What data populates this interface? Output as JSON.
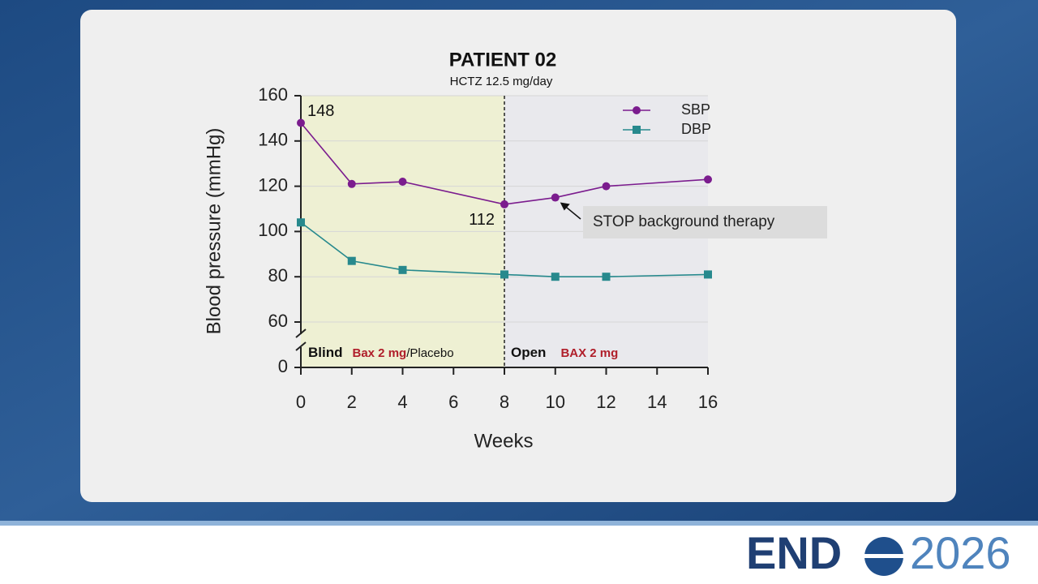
{
  "chart_data": {
    "type": "line",
    "title": "PATIENT 02",
    "subtitle": "HCTZ 12.5 mg/day",
    "x_label": "Weeks",
    "y_label": "Blood pressure (mmHg)",
    "xlim": [
      0,
      16
    ],
    "xticks": [
      0,
      2,
      4,
      6,
      8,
      10,
      12,
      14,
      16
    ],
    "ylim": [
      0,
      160
    ],
    "yticks": [
      0,
      60,
      80,
      100,
      120,
      140,
      160
    ],
    "axis_break": [
      0,
      60
    ],
    "grid": true,
    "legend": "upper right",
    "phase_boundary": 8,
    "phases": [
      {
        "name": "Blind",
        "drug": "Bax 2 mg",
        "comparator": "/Placebo",
        "color": "#eef0d3"
      },
      {
        "name": "Open",
        "drug": "BAX 2 mg",
        "color": "#e9e9ed"
      }
    ],
    "annotation": "STOP background therapy",
    "series": [
      {
        "name": "SBP",
        "color": "#7b1c8e",
        "marker": "circle",
        "x": [
          0,
          2,
          4,
          8,
          10,
          12,
          16
        ],
        "values": [
          148,
          121,
          122,
          112,
          115,
          120,
          123
        ],
        "value_labels": [
          "148",
          null,
          null,
          "112",
          null,
          null,
          null
        ]
      },
      {
        "name": "DBP",
        "color": "#27898d",
        "marker": "square",
        "x": [
          0,
          2,
          4,
          8,
          10,
          12,
          16
        ],
        "values": [
          104,
          87,
          83,
          81,
          80,
          80,
          81
        ]
      }
    ]
  },
  "footer": {
    "logo": "END",
    "year": "2026"
  }
}
